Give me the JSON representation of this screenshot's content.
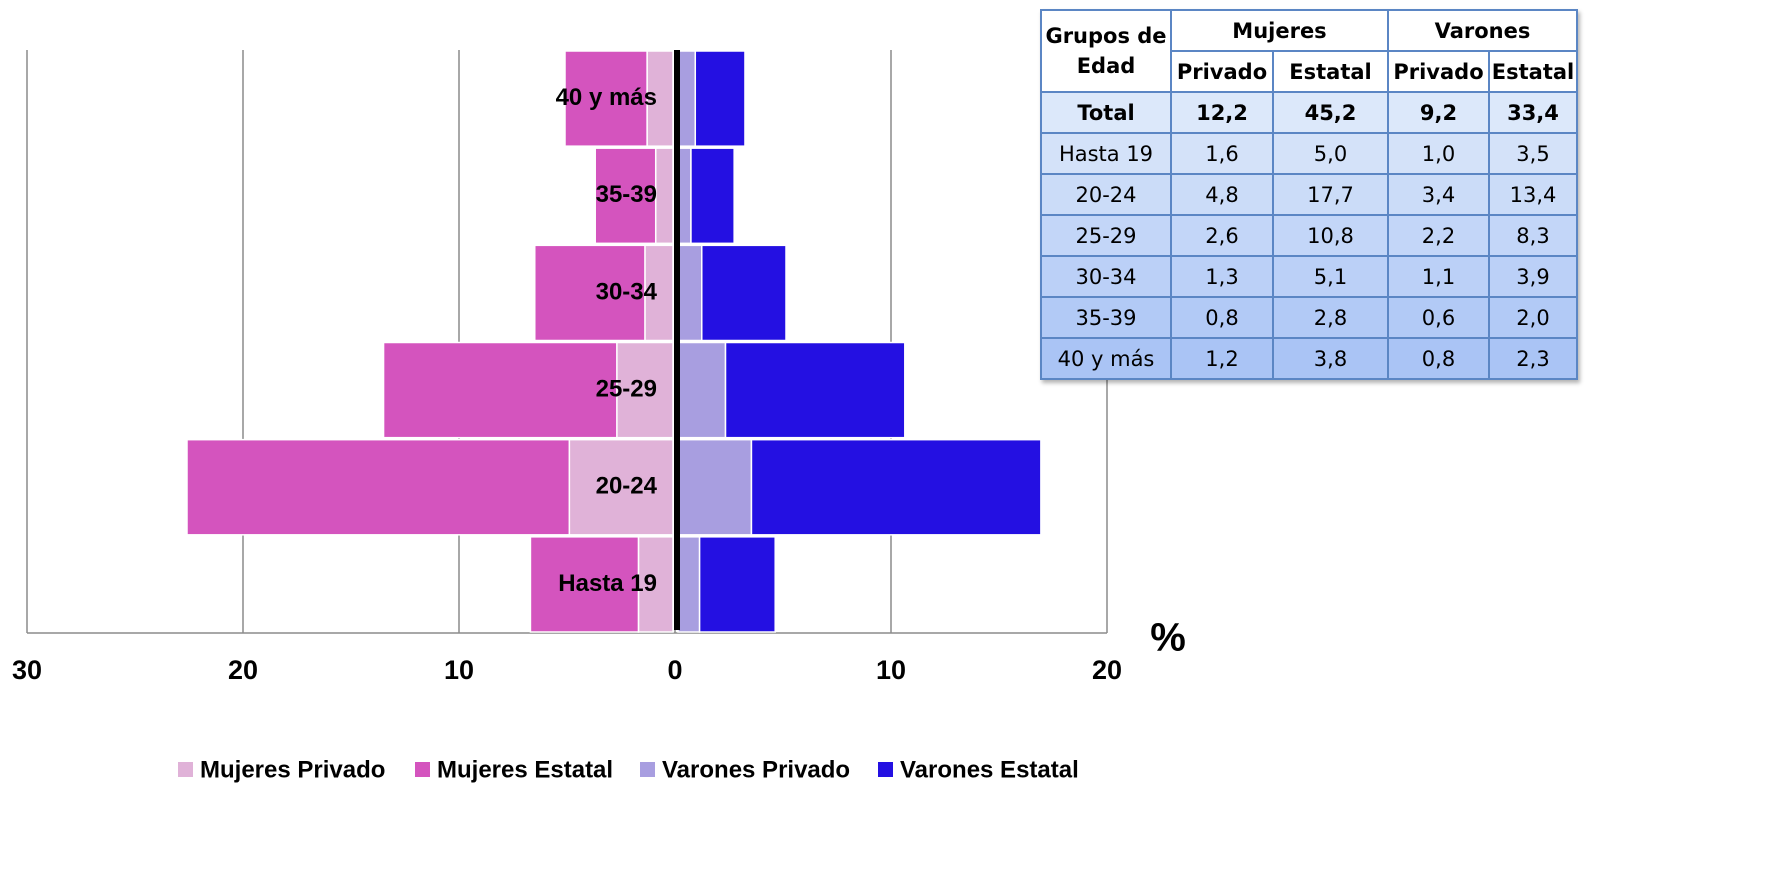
{
  "chart_data": {
    "type": "pyramid",
    "categories": [
      "Hasta 19",
      "20-24",
      "25-29",
      "30-34",
      "35-39",
      "40 y más"
    ],
    "series": [
      {
        "name": "Mujeres Privado",
        "color": "#e0b2d8",
        "values": [
          1.6,
          4.8,
          2.6,
          1.3,
          0.8,
          1.2
        ]
      },
      {
        "name": "Mujeres Estatal",
        "color": "#d454be",
        "values": [
          5.0,
          17.7,
          10.8,
          5.1,
          2.8,
          3.8
        ]
      },
      {
        "name": "Varones Privado",
        "color": "#a89ee0",
        "values": [
          1.0,
          3.4,
          2.2,
          1.1,
          0.6,
          0.8
        ]
      },
      {
        "name": "Varones Estatal",
        "color": "#2410e2",
        "values": [
          3.5,
          13.4,
          8.3,
          3.9,
          2.0,
          2.3
        ]
      }
    ],
    "xlabel": "%",
    "xlim": [
      -30,
      20
    ],
    "xticks": [
      {
        "value": -30,
        "label": "30"
      },
      {
        "value": -20,
        "label": "20"
      },
      {
        "value": -10,
        "label": "10"
      },
      0,
      10,
      20
    ],
    "grid": true,
    "legend": "bottom"
  },
  "table": {
    "header": [
      "Grupos de Edad",
      "Mujeres",
      "Varones"
    ],
    "subheader": [
      "Privado",
      "Estatal",
      "Privado",
      "Estatal"
    ],
    "rows": [
      [
        "Total",
        "12,2",
        "45,2",
        "9,2",
        "33,4"
      ],
      [
        "Hasta 19",
        "1,6",
        "5,0",
        "1,0",
        "3,5"
      ],
      [
        "20-24",
        "4,8",
        "17,7",
        "3,4",
        "13,4"
      ],
      [
        "25-29",
        "2,6",
        "10,8",
        "2,2",
        "8,3"
      ],
      [
        "30-34",
        "1,3",
        "5,1",
        "1,1",
        "3,9"
      ],
      [
        "35-39",
        "0,8",
        "2,8",
        "0,6",
        "2,0"
      ],
      [
        "40 y más",
        "1,2",
        "3,8",
        "0,8",
        "2,3"
      ]
    ]
  }
}
